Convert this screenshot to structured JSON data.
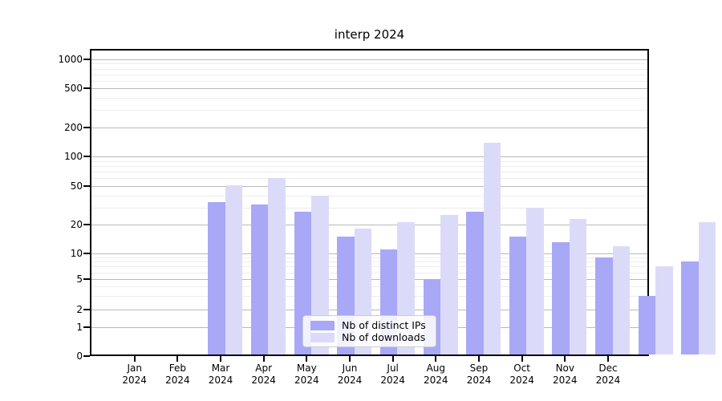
{
  "title": "interp 2024",
  "chart_data": {
    "type": "bar",
    "title": "interp 2024",
    "x_year": "2024",
    "months": [
      "Jan",
      "Feb",
      "Mar",
      "Apr",
      "May",
      "Jun",
      "Jul",
      "Aug",
      "Sep",
      "Oct",
      "Nov",
      "Dec"
    ],
    "series": [
      {
        "key": "ips",
        "name": "Nb of distinct IPs",
        "color": "#a8a8f7",
        "values": [
          34,
          32,
          27,
          15,
          11,
          5,
          27,
          15,
          13,
          9,
          3,
          8
        ]
      },
      {
        "key": "downloads",
        "name": "Nb of downloads",
        "color": "#dbdbf9",
        "values": [
          51,
          60,
          40,
          18,
          21,
          25,
          140,
          30,
          23,
          12,
          7,
          21
        ]
      }
    ],
    "yticks": [
      0,
      1,
      2,
      5,
      10,
      20,
      50,
      100,
      200,
      500,
      1000
    ],
    "y_minor_ticks": [
      3,
      4,
      6,
      7,
      8,
      9,
      30,
      40,
      60,
      70,
      80,
      90,
      300,
      400,
      600,
      700,
      800,
      900
    ],
    "yscale": "symlog",
    "ylim": [
      0,
      1400
    ],
    "grid": true,
    "legend_position": "lower center",
    "colors": {
      "grid_major": "#b9b9b9",
      "grid_minor": "#ededed",
      "axis": "#000000"
    }
  }
}
